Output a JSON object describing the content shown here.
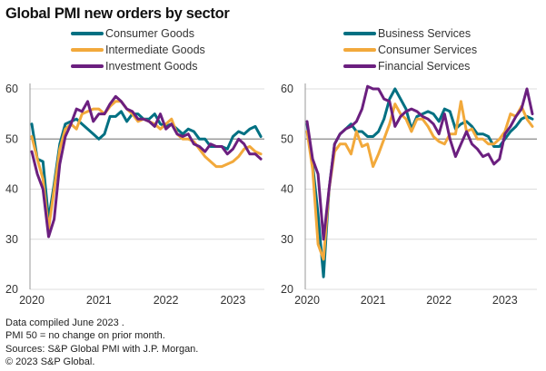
{
  "title": "Global PMI new orders by sector",
  "colors": {
    "teal": "#007082",
    "orange": "#f2a93b",
    "purple": "#6b1f7f"
  },
  "chart_data": [
    {
      "type": "line",
      "title": "",
      "xlabel": "",
      "ylabel": "",
      "ylim": [
        20,
        62
      ],
      "yticks": [
        "20",
        "30",
        "40",
        "50",
        "60"
      ],
      "xticks": [
        "2020",
        "2021",
        "2022",
        "2023"
      ],
      "x_range": [
        "2020-01",
        "2023-06"
      ],
      "reference_line": 50,
      "grid": true,
      "legend_placement": "top",
      "series": [
        {
          "name": "Consumer Goods",
          "color": "#007082",
          "values": [
            53,
            46,
            45.5,
            34,
            41,
            49,
            53,
            53.5,
            54,
            53,
            52,
            51,
            50,
            51,
            54.5,
            54.5,
            55.5,
            53.5,
            55,
            55,
            54,
            54,
            55,
            53,
            52.5,
            53,
            52,
            51,
            52,
            51.5,
            50,
            50,
            48.5,
            48.5,
            48.5,
            48,
            50.5,
            51.5,
            51,
            52,
            52.5,
            50.5
          ]
        },
        {
          "name": "Intermediate Goods",
          "color": "#f2a93b",
          "values": [
            50.5,
            46,
            42,
            32,
            40,
            48,
            52,
            53,
            52,
            55,
            55.5,
            56,
            56,
            55,
            56.5,
            57.5,
            57.5,
            56,
            55,
            53.5,
            54,
            53.5,
            53,
            52,
            53,
            54,
            51,
            50,
            50,
            49.5,
            48,
            46.5,
            45.5,
            44.5,
            44.5,
            45,
            45.5,
            46.5,
            48,
            48.5,
            47.5,
            47
          ]
        },
        {
          "name": "Investment Goods",
          "color": "#6b1f7f",
          "values": [
            47.5,
            43,
            40,
            30.5,
            34,
            45,
            50.5,
            53,
            56,
            55.5,
            57.5,
            53.5,
            55,
            55,
            57,
            58.5,
            57.5,
            56,
            55.5,
            54,
            54,
            53.5,
            52.5,
            55,
            52,
            53,
            51,
            50.5,
            51,
            49,
            48.5,
            47.5,
            49,
            48.5,
            48.5,
            47,
            48,
            50,
            49,
            47,
            47,
            46
          ]
        }
      ]
    },
    {
      "type": "line",
      "title": "",
      "xlabel": "",
      "ylabel": "",
      "ylim": [
        20,
        62
      ],
      "yticks": [
        "20",
        "30",
        "40",
        "50",
        "60"
      ],
      "xticks": [
        "2020",
        "2021",
        "2022",
        "2023"
      ],
      "x_range": [
        "2020-01",
        "2023-06"
      ],
      "reference_line": 50,
      "grid": true,
      "legend_placement": "top",
      "series": [
        {
          "name": "Business Services",
          "color": "#007082",
          "values": [
            53,
            45,
            35,
            22.5,
            40,
            49,
            51,
            52,
            53,
            51.5,
            51.5,
            50.5,
            50.5,
            51.5,
            54,
            58,
            60,
            58,
            56,
            52,
            54.5,
            55,
            55.5,
            55,
            53.5,
            56,
            55.5,
            52,
            53,
            53.5,
            52.5,
            51,
            51,
            50.5,
            48.5,
            48.5,
            50,
            51.5,
            52.5,
            54,
            54.5,
            54
          ]
        },
        {
          "name": "Consumer Services",
          "color": "#f2a93b",
          "values": [
            51.5,
            44,
            29,
            26,
            40,
            47.5,
            49,
            49,
            47,
            51.5,
            48.5,
            49,
            44.5,
            47,
            50,
            53,
            57,
            55,
            54,
            51.5,
            54,
            54,
            52.5,
            50.5,
            49.5,
            49,
            51,
            51,
            57.5,
            51.5,
            52,
            50,
            50,
            49,
            49,
            50,
            51.5,
            55,
            54.5,
            56.5,
            54,
            52.5
          ]
        },
        {
          "name": "Financial Services",
          "color": "#6b1f7f",
          "values": [
            53.5,
            46,
            43,
            30,
            40,
            49,
            51,
            52,
            52.5,
            53.5,
            56,
            60.5,
            60,
            60,
            58,
            57.5,
            52.5,
            54.5,
            55.5,
            56,
            55.5,
            54.5,
            54,
            53,
            51,
            55,
            50,
            46.5,
            49,
            51.5,
            49,
            48,
            46.5,
            47,
            45,
            46,
            51,
            52.5,
            54.5,
            56,
            60,
            55
          ]
        }
      ]
    }
  ],
  "footer": {
    "line1": "Data compiled June 2023 .",
    "line2": "PMI 50 = no change on prior month.",
    "line3": "Sources: S&P Global PMI with J.P. Morgan.",
    "line4": "© 2023 S&P Global."
  }
}
